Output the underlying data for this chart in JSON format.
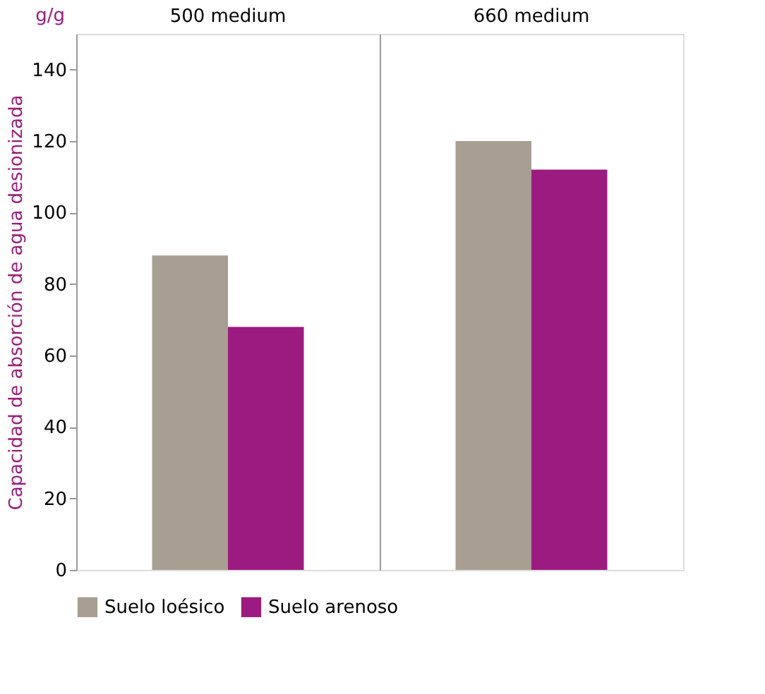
{
  "chart_data": {
    "type": "bar",
    "categories": [
      "500 medium",
      "660 medium"
    ],
    "series": [
      {
        "name": "Suelo loésico",
        "color": "#a89f92",
        "values": [
          88,
          120
        ]
      },
      {
        "name": "Suelo arenoso",
        "color": "#9b1b80",
        "values": [
          68,
          112
        ]
      }
    ],
    "ylabel": "Capacidad de absorción de agua desionizada",
    "annotations": [
      "g/g"
    ],
    "ylim": [
      0,
      150
    ],
    "yticks": [
      0,
      20,
      40,
      60,
      80,
      100,
      120,
      140
    ],
    "grid": "x",
    "legend": "bottom left"
  }
}
